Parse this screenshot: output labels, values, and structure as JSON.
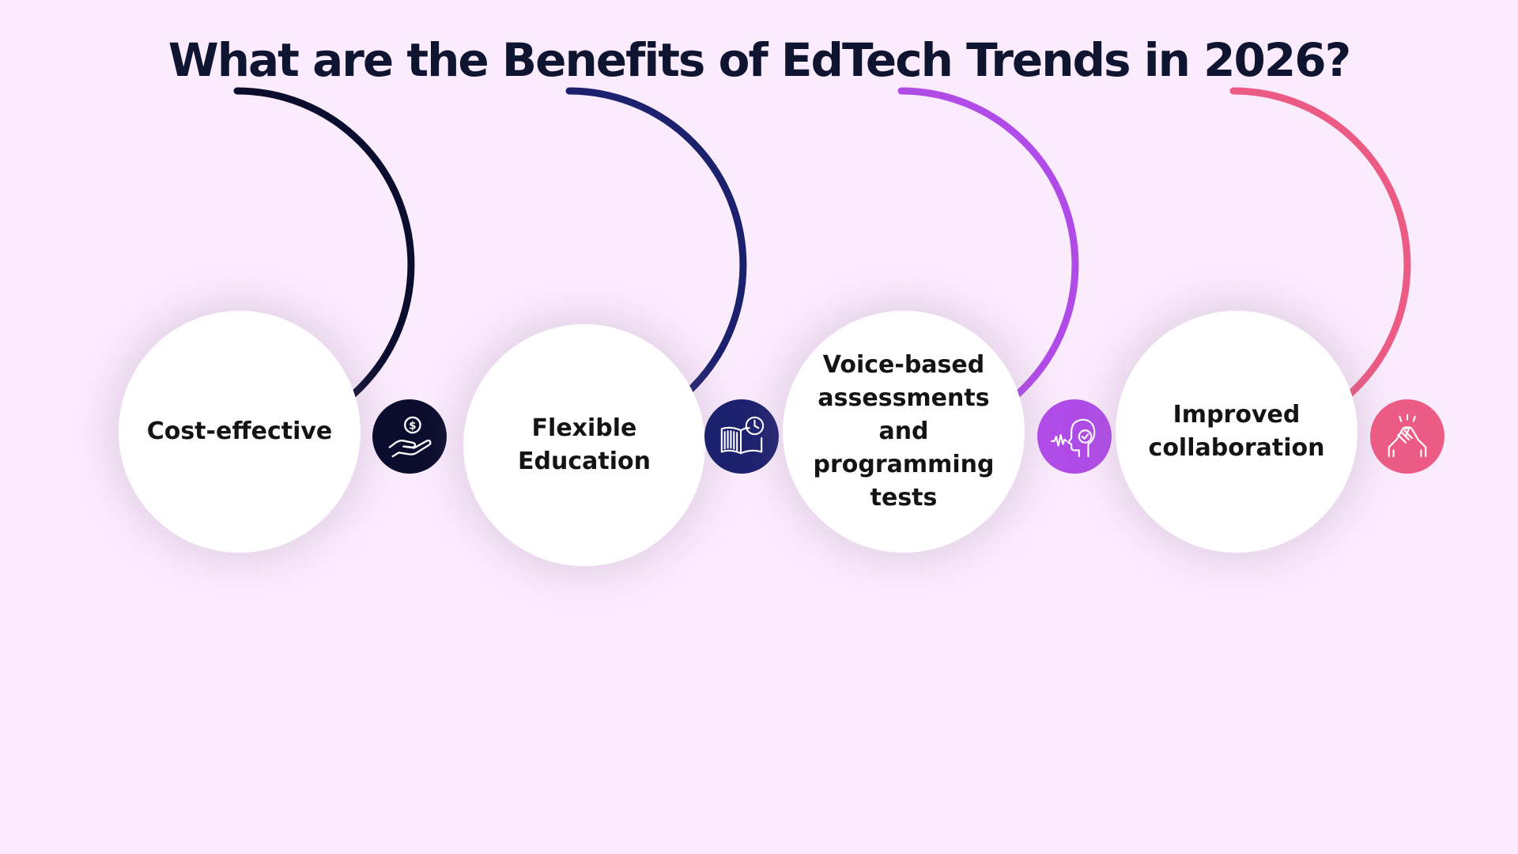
{
  "title": "What are the Benefits of EdTech Trends in 2026?",
  "benefits": [
    {
      "label_lines": [
        "Cost-effective"
      ],
      "color": "#0b0d2e",
      "icon": "money-hand-icon"
    },
    {
      "label_lines": [
        "Flexible",
        "Education"
      ],
      "color": "#1c216e",
      "icon": "book-clock-icon"
    },
    {
      "label_lines": [
        "Voice-based",
        "assessments and",
        "programming",
        "tests"
      ],
      "color": "#b04be8",
      "icon": "voice-head-icon"
    },
    {
      "label_lines": [
        "Improved",
        "collaboration"
      ],
      "color": "#ec5b83",
      "icon": "handshake-icon"
    }
  ]
}
